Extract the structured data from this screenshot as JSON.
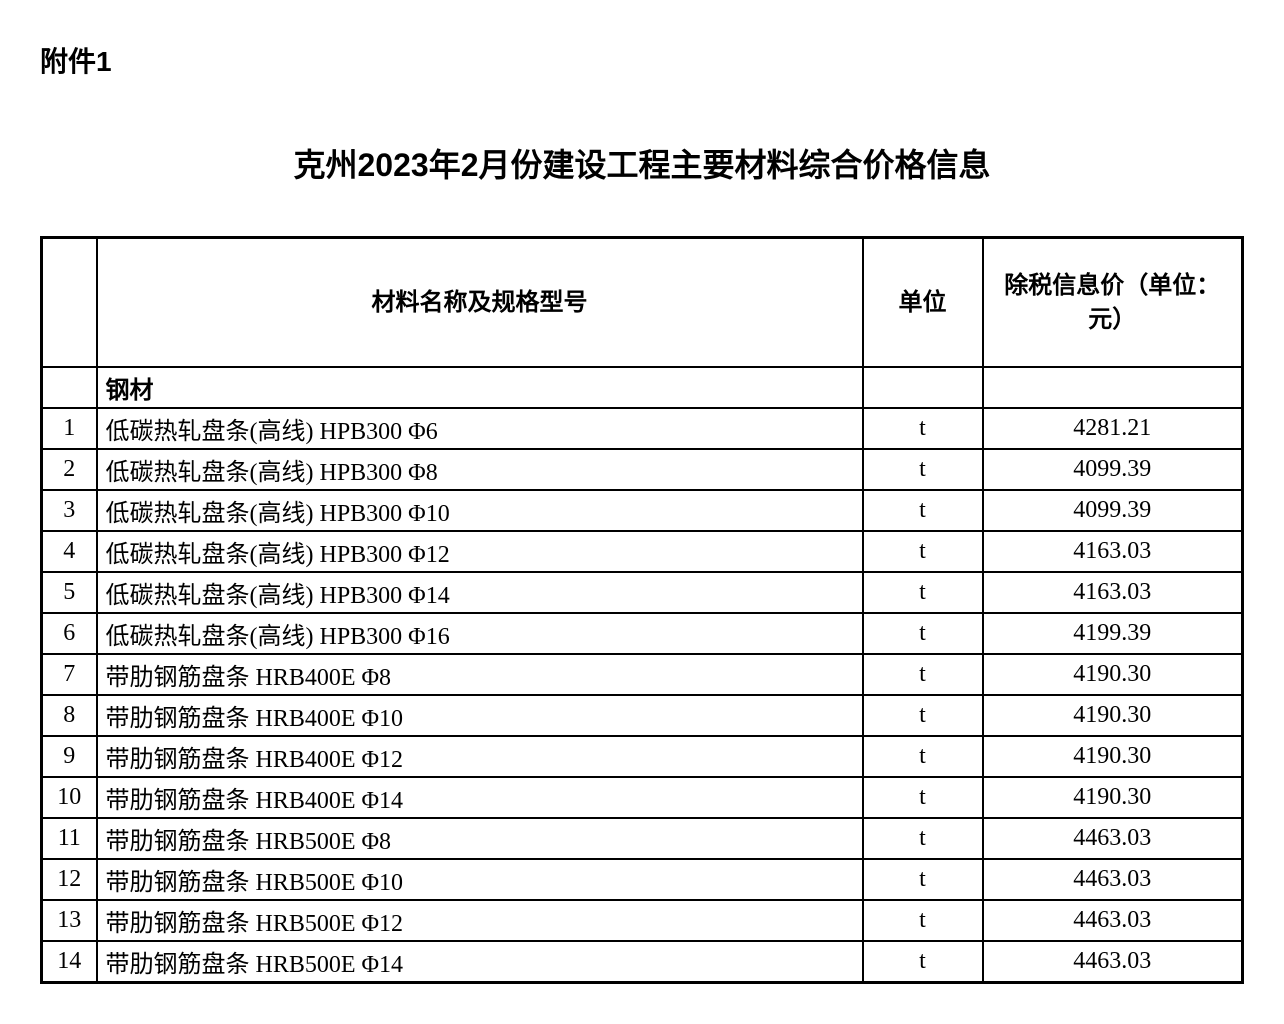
{
  "document": {
    "attachment_label": "附件1",
    "title": "克州2023年2月份建设工程主要材料综合价格信息"
  },
  "table": {
    "columns": {
      "index": "",
      "name": "材料名称及规格型号",
      "unit": "单位",
      "price": "除税信息价（单位：元）"
    },
    "section_header": "钢材",
    "rows": [
      {
        "index": "1",
        "name": "低碳热轧盘条(高线) HPB300 Φ6",
        "unit": "t",
        "price": "4281.21"
      },
      {
        "index": "2",
        "name": "低碳热轧盘条(高线) HPB300 Φ8",
        "unit": "t",
        "price": "4099.39"
      },
      {
        "index": "3",
        "name": "低碳热轧盘条(高线) HPB300 Φ10",
        "unit": "t",
        "price": "4099.39"
      },
      {
        "index": "4",
        "name": "低碳热轧盘条(高线) HPB300 Φ12",
        "unit": "t",
        "price": "4163.03"
      },
      {
        "index": "5",
        "name": "低碳热轧盘条(高线) HPB300 Φ14",
        "unit": "t",
        "price": "4163.03"
      },
      {
        "index": "6",
        "name": "低碳热轧盘条(高线) HPB300 Φ16",
        "unit": "t",
        "price": "4199.39"
      },
      {
        "index": "7",
        "name": "带肋钢筋盘条 HRB400E Φ8",
        "unit": "t",
        "price": "4190.30"
      },
      {
        "index": "8",
        "name": "带肋钢筋盘条 HRB400E Φ10",
        "unit": "t",
        "price": "4190.30"
      },
      {
        "index": "9",
        "name": "带肋钢筋盘条 HRB400E Φ12",
        "unit": "t",
        "price": "4190.30"
      },
      {
        "index": "10",
        "name": "带肋钢筋盘条 HRB400E Φ14",
        "unit": "t",
        "price": "4190.30"
      },
      {
        "index": "11",
        "name": "带肋钢筋盘条 HRB500E Φ8",
        "unit": "t",
        "price": "4463.03"
      },
      {
        "index": "12",
        "name": "带肋钢筋盘条 HRB500E Φ10",
        "unit": "t",
        "price": "4463.03"
      },
      {
        "index": "13",
        "name": "带肋钢筋盘条 HRB500E Φ12",
        "unit": "t",
        "price": "4463.03"
      },
      {
        "index": "14",
        "name": "带肋钢筋盘条 HRB500E Φ14",
        "unit": "t",
        "price": "4463.03"
      }
    ]
  },
  "styling": {
    "background_color": "#ffffff",
    "text_color": "#000000",
    "border_color": "#000000",
    "title_fontsize": 32,
    "header_fontsize": 24,
    "cell_fontsize": 24,
    "attachment_fontsize": 28
  }
}
